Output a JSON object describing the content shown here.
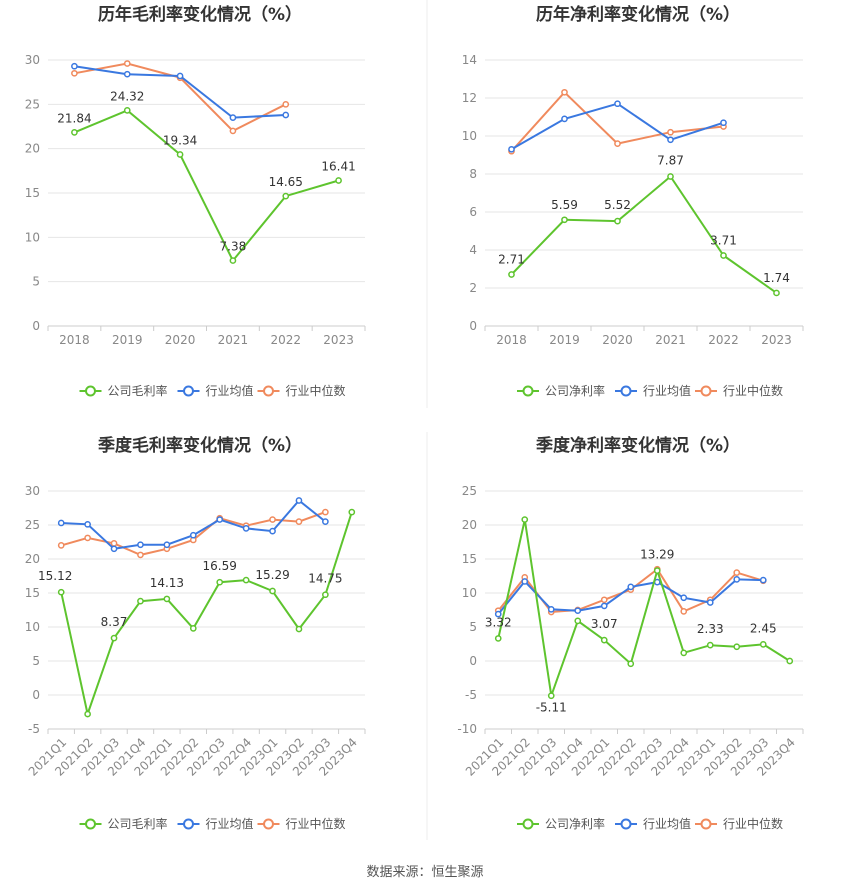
{
  "colors": {
    "company": "#5ec42e",
    "avg": "#3a78e0",
    "median": "#f08a5d"
  },
  "legend": {
    "gross": [
      "公司毛利率",
      "行业均值",
      "行业中位数"
    ],
    "net": [
      "公司净利率",
      "行业均值",
      "行业中位数"
    ]
  },
  "source": "数据来源：恒生聚源",
  "chart_data": [
    {
      "type": "line",
      "title": "历年毛利率变化情况（%）",
      "categories": [
        "2018",
        "2019",
        "2020",
        "2021",
        "2022",
        "2023"
      ],
      "ylim": [
        0,
        30
      ],
      "yticks": [
        0,
        5,
        10,
        15,
        20,
        25,
        30
      ],
      "series": [
        {
          "name": "公司毛利率",
          "values": [
            21.84,
            24.32,
            19.34,
            7.38,
            14.65,
            16.41
          ]
        },
        {
          "name": "行业均值",
          "values": [
            29.3,
            28.4,
            28.2,
            23.5,
            23.8,
            null
          ]
        },
        {
          "name": "行业中位数",
          "values": [
            28.5,
            29.6,
            28.0,
            22.0,
            25.0,
            null
          ]
        }
      ],
      "labels": [
        "21.84",
        "24.32",
        "19.34",
        "7.38",
        "14.65",
        "16.41"
      ]
    },
    {
      "type": "line",
      "title": "历年净利率变化情况（%）",
      "categories": [
        "2018",
        "2019",
        "2020",
        "2021",
        "2022",
        "2023"
      ],
      "ylim": [
        0,
        14
      ],
      "yticks": [
        0,
        2,
        4,
        6,
        8,
        10,
        12,
        14
      ],
      "series": [
        {
          "name": "公司净利率",
          "values": [
            2.71,
            5.59,
            5.52,
            7.87,
            3.71,
            1.74
          ]
        },
        {
          "name": "行业均值",
          "values": [
            9.3,
            10.9,
            11.7,
            9.8,
            10.7,
            null
          ]
        },
        {
          "name": "行业中位数",
          "values": [
            9.2,
            12.3,
            9.6,
            10.2,
            10.5,
            null
          ]
        }
      ],
      "labels": [
        "2.71",
        "5.59",
        "5.52",
        "7.87",
        "3.71",
        "1.74"
      ]
    },
    {
      "type": "line",
      "title": "季度毛利率变化情况（%）",
      "categories": [
        "2021Q1",
        "2021Q2",
        "2021Q3",
        "2021Q4",
        "2022Q1",
        "2022Q2",
        "2022Q3",
        "2022Q4",
        "2023Q1",
        "2023Q2",
        "2023Q3",
        "2023Q4"
      ],
      "ylim": [
        -5,
        30
      ],
      "yticks": [
        -5,
        0,
        5,
        10,
        15,
        20,
        25,
        30
      ],
      "series": [
        {
          "name": "公司毛利率",
          "values": [
            15.12,
            -2.8,
            8.37,
            13.8,
            14.13,
            9.8,
            16.59,
            16.9,
            15.29,
            9.7,
            14.75,
            26.9
          ]
        },
        {
          "name": "行业均值",
          "values": [
            25.3,
            25.1,
            21.5,
            22.1,
            22.1,
            23.5,
            25.8,
            24.5,
            24.1,
            28.6,
            25.5,
            null
          ]
        },
        {
          "name": "行业中位数",
          "values": [
            22.0,
            23.1,
            22.3,
            20.6,
            21.5,
            22.8,
            26.0,
            24.9,
            25.8,
            25.5,
            26.9,
            null
          ]
        }
      ],
      "labels": [
        "15.12",
        "",
        "8.37",
        "",
        "14.13",
        "",
        "16.59",
        "",
        "15.29",
        "",
        "14.75",
        ""
      ]
    },
    {
      "type": "line",
      "title": "季度净利率变化情况（%）",
      "categories": [
        "2021Q1",
        "2021Q2",
        "2021Q3",
        "2021Q4",
        "2022Q1",
        "2022Q2",
        "2022Q3",
        "2022Q4",
        "2023Q1",
        "2023Q2",
        "2023Q3",
        "2023Q4"
      ],
      "ylim": [
        -10,
        25
      ],
      "yticks": [
        -10,
        -5,
        0,
        5,
        10,
        15,
        20,
        25
      ],
      "series": [
        {
          "name": "公司净利率",
          "values": [
            3.32,
            20.8,
            -5.11,
            5.9,
            3.07,
            -0.4,
            13.29,
            1.2,
            2.33,
            2.1,
            2.45,
            0.0
          ]
        },
        {
          "name": "行业均值",
          "values": [
            6.9,
            11.7,
            7.6,
            7.4,
            8.1,
            10.9,
            11.6,
            9.3,
            8.6,
            12.0,
            11.9,
            null
          ]
        },
        {
          "name": "行业中位数",
          "values": [
            7.4,
            12.3,
            7.2,
            7.5,
            9.0,
            10.5,
            13.5,
            7.3,
            9.0,
            13.0,
            11.8,
            null
          ]
        }
      ],
      "labels": [
        "3.32",
        "",
        "-5.11",
        "",
        "3.07",
        "",
        "13.29",
        "",
        "2.33",
        "",
        "2.45",
        ""
      ]
    }
  ]
}
